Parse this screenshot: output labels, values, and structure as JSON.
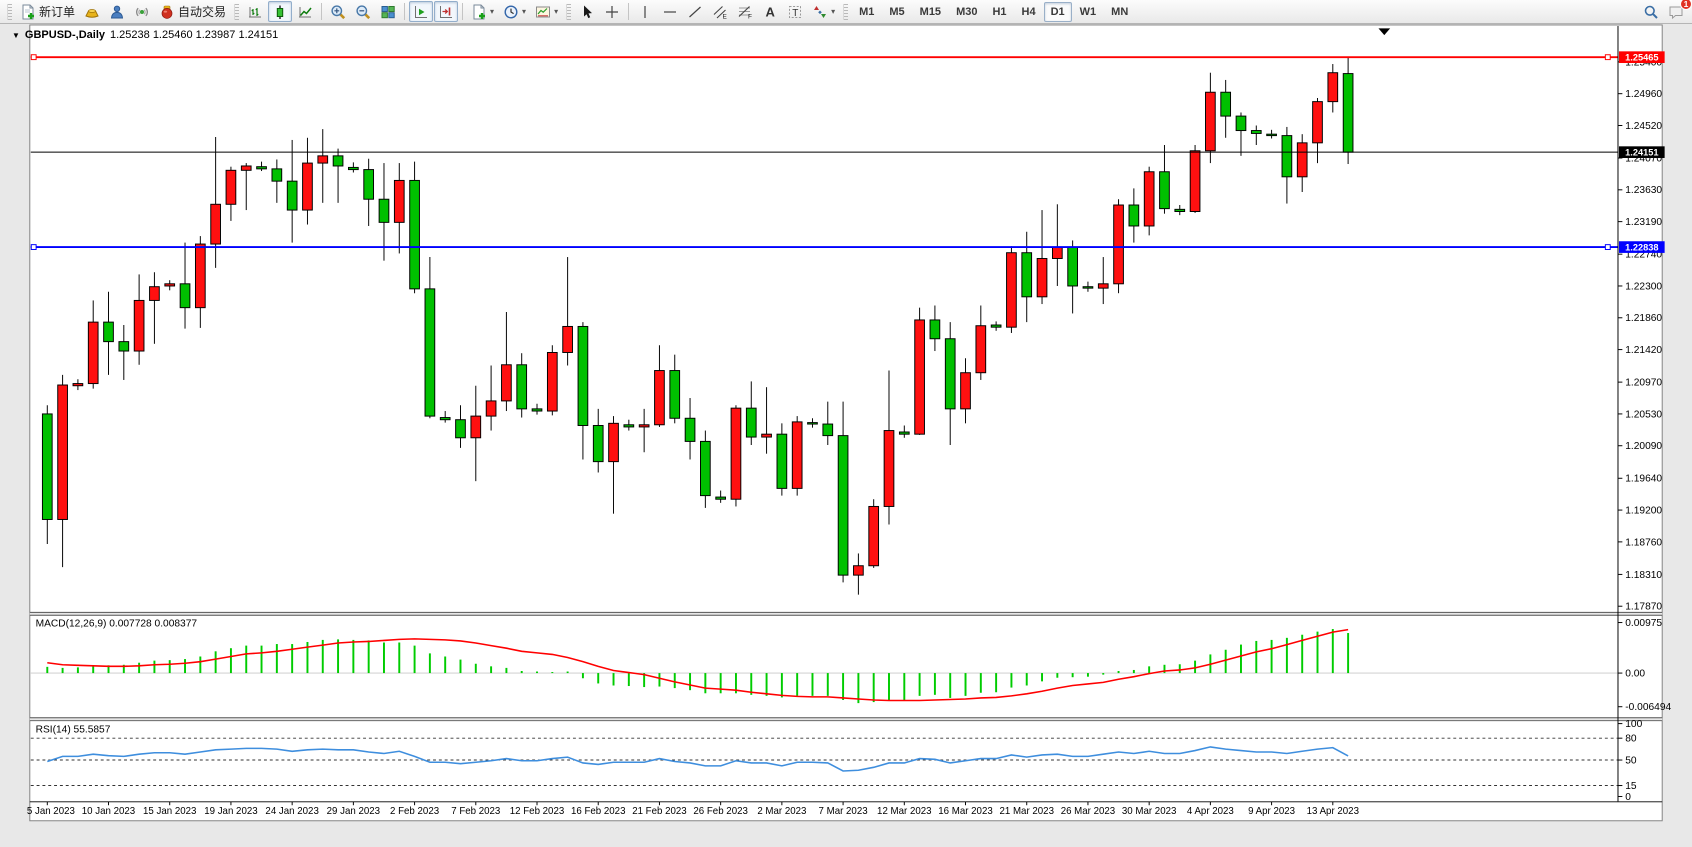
{
  "toolbar": {
    "new_order": "新订单",
    "auto_trading": "自动交易",
    "timeframes": [
      "M1",
      "M5",
      "M15",
      "M30",
      "H1",
      "H4",
      "D1",
      "W1",
      "MN"
    ],
    "active_timeframe": "D1",
    "notification_badge": "1",
    "icons": {
      "new-order-icon": "document-plus",
      "gold-icon": "gold-ingot",
      "profile-icon": "person",
      "signal-icon": "radio-waves",
      "auto-trading-icon": "red-ball",
      "bar-chart-icon": "ohlc-bars",
      "candlestick-icon": "candle",
      "line-chart-icon": "polyline",
      "zoom-in-icon": "magnifier-plus",
      "zoom-out-icon": "magnifier-minus",
      "tile-windows-icon": "grid",
      "auto-scroll-icon": "chart-play",
      "chart-shift-icon": "chart-shift",
      "new-chart-icon": "document-plus",
      "periods-icon": "clock",
      "templates-icon": "mini-chart",
      "cursor-icon": "arrow-pointer",
      "crosshair-icon": "crosshair",
      "vline-icon": "vertical-line",
      "hline-icon": "horizontal-line",
      "trendline-icon": "diagonal-line",
      "channel-icon": "parallel-lines-E",
      "fibonacci-icon": "levels-F",
      "text-icon": "letter-A",
      "label-icon": "boxed-T",
      "arrows-icon": "shapes",
      "search-icon": "magnifier",
      "chat-icon": "speech-bubble"
    }
  },
  "title_bar": {
    "symbol": "GBPUSD-,Daily",
    "ohlc_text": "1.25238 1.25460 1.23987 1.24151"
  },
  "chart_data": {
    "type": "candlestick",
    "symbol": "GBPUSD",
    "timeframe": "Daily",
    "last_bar": {
      "open": 1.25238,
      "high": 1.2546,
      "low": 1.23987,
      "close": 1.24151
    },
    "colors": {
      "up_body": "#FF1010",
      "down_body": "#00C000",
      "wick": "#000000",
      "macd_histogram": "#00CC00",
      "macd_signal": "#FF0000",
      "rsi_line": "#3E8EDE",
      "hline_resistance": "#FF0000",
      "hline_support": "#0000FF",
      "bid_line": "#000000",
      "background": "#FFFFFF"
    },
    "price_axis": {
      "visible_max": 1.25897,
      "visible_min": 1.17792,
      "ticks": [
        1.254,
        1.2496,
        1.2452,
        1.2407,
        1.2363,
        1.2319,
        1.2274,
        1.223,
        1.2186,
        1.2142,
        1.2097,
        1.2053,
        1.2009,
        1.1964,
        1.192,
        1.1876,
        1.1831,
        1.1787
      ]
    },
    "hlines": [
      {
        "name": "resistance-line",
        "value": 1.25465,
        "label": "1.25465",
        "color": "#FF0000",
        "width": 2,
        "handles": true
      },
      {
        "name": "bid-price-line",
        "value": 1.24151,
        "label": "1.24151",
        "color": "#000000",
        "width": 1,
        "handles": false
      },
      {
        "name": "support-line",
        "value": 1.22838,
        "label": "1.22838",
        "color": "#0000FF",
        "width": 2,
        "handles": true
      }
    ],
    "x_ticks": [
      {
        "label": "5 Jan 2023",
        "i": 0
      },
      {
        "label": "10 Jan 2023",
        "i": 4
      },
      {
        "label": "15 Jan 2023",
        "i": 8
      },
      {
        "label": "19 Jan 2023",
        "i": 12
      },
      {
        "label": "24 Jan 2023",
        "i": 16
      },
      {
        "label": "29 Jan 2023",
        "i": 20
      },
      {
        "label": "2 Feb 2023",
        "i": 24
      },
      {
        "label": "7 Feb 2023",
        "i": 28
      },
      {
        "label": "12 Feb 2023",
        "i": 32
      },
      {
        "label": "16 Feb 2023",
        "i": 36
      },
      {
        "label": "21 Feb 2023",
        "i": 40
      },
      {
        "label": "26 Feb 2023",
        "i": 44
      },
      {
        "label": "2 Mar 2023",
        "i": 48
      },
      {
        "label": "7 Mar 2023",
        "i": 52
      },
      {
        "label": "12 Mar 2023",
        "i": 56
      },
      {
        "label": "16 Mar 2023",
        "i": 60
      },
      {
        "label": "21 Mar 2023",
        "i": 64
      },
      {
        "label": "26 Mar 2023",
        "i": 68
      },
      {
        "label": "30 Mar 2023",
        "i": 72
      },
      {
        "label": "4 Apr 2023",
        "i": 76
      },
      {
        "label": "9 Apr 2023",
        "i": 80
      },
      {
        "label": "13 Apr 2023",
        "i": 84
      }
    ],
    "candles": [
      [
        "5 Jan",
        1.2053,
        1.2065,
        1.1873,
        1.1907
      ],
      [
        "6 Jan",
        1.1907,
        1.2107,
        1.1841,
        1.2093
      ],
      [
        "8 Jan",
        1.2092,
        1.2101,
        1.2086,
        1.2095
      ],
      [
        "9 Jan",
        1.2095,
        1.221,
        1.2088,
        1.218
      ],
      [
        "10 Jan",
        1.218,
        1.2222,
        1.2107,
        1.2153
      ],
      [
        "11 Jan",
        1.2153,
        1.2176,
        1.21,
        1.214
      ],
      [
        "12 Jan",
        1.214,
        1.2246,
        1.2121,
        1.221
      ],
      [
        "13 Jan",
        1.221,
        1.2249,
        1.215,
        1.2229
      ],
      [
        "15 Jan",
        1.223,
        1.2238,
        1.2224,
        1.2233
      ],
      [
        "16 Jan",
        1.2233,
        1.229,
        1.2171,
        1.22
      ],
      [
        "17 Jan",
        1.22,
        1.2299,
        1.2172,
        1.2288
      ],
      [
        "18 Jan",
        1.2288,
        1.2436,
        1.2255,
        1.2343
      ],
      [
        "19 Jan",
        1.2343,
        1.2395,
        1.232,
        1.239
      ],
      [
        "20 Jan",
        1.239,
        1.24,
        1.2335,
        1.2396
      ],
      [
        "22 Jan",
        1.2395,
        1.2402,
        1.2389,
        1.2392
      ],
      [
        "23 Jan",
        1.2392,
        1.2405,
        1.2345,
        1.2375
      ],
      [
        "24 Jan",
        1.2375,
        1.2432,
        1.229,
        1.2335
      ],
      [
        "25 Jan",
        1.2335,
        1.2435,
        1.2315,
        1.24
      ],
      [
        "26 Jan",
        1.24,
        1.2447,
        1.2345,
        1.241
      ],
      [
        "27 Jan",
        1.241,
        1.242,
        1.2345,
        1.2396
      ],
      [
        "29 Jan",
        1.2394,
        1.2401,
        1.2387,
        1.2391
      ],
      [
        "30 Jan",
        1.2391,
        1.2406,
        1.2313,
        1.235
      ],
      [
        "31 Jan",
        1.235,
        1.24,
        1.2265,
        1.2318
      ],
      [
        "1 Feb",
        1.2318,
        1.24,
        1.2275,
        1.2376
      ],
      [
        "2 Feb",
        1.2376,
        1.2402,
        1.222,
        1.2226
      ],
      [
        "3 Feb",
        1.2226,
        1.227,
        1.2047,
        1.205
      ],
      [
        "5 Feb",
        1.2048,
        1.2057,
        1.2041,
        1.2045
      ],
      [
        "6 Feb",
        1.2045,
        1.2065,
        1.2006,
        1.202
      ],
      [
        "7 Feb",
        1.202,
        1.2092,
        1.196,
        1.205
      ],
      [
        "8 Feb",
        1.205,
        1.212,
        1.203,
        1.2071
      ],
      [
        "9 Feb",
        1.2071,
        1.2194,
        1.2057,
        1.2121
      ],
      [
        "10 Feb",
        1.2121,
        1.2137,
        1.2048,
        1.206
      ],
      [
        "12 Feb",
        1.206,
        1.2067,
        1.2052,
        1.2057
      ],
      [
        "13 Feb",
        1.2057,
        1.2148,
        1.2051,
        1.2138
      ],
      [
        "14 Feb",
        1.2138,
        1.227,
        1.212,
        1.2174
      ],
      [
        "15 Feb",
        1.2174,
        1.218,
        1.199,
        1.2037
      ],
      [
        "16 Feb",
        1.2037,
        1.206,
        1.1972,
        1.1987
      ],
      [
        "17 Feb",
        1.1987,
        1.205,
        1.1915,
        1.204
      ],
      [
        "19 Feb",
        1.2038,
        1.2045,
        1.203,
        1.2035
      ],
      [
        "20 Feb",
        1.2035,
        1.206,
        1.2,
        1.2038
      ],
      [
        "21 Feb",
        1.2038,
        1.2148,
        1.2035,
        1.2113
      ],
      [
        "22 Feb",
        1.2113,
        1.2135,
        1.204,
        1.2047
      ],
      [
        "23 Feb",
        1.2047,
        1.2075,
        1.199,
        1.2015
      ],
      [
        "24 Feb",
        1.2015,
        1.203,
        1.1923,
        1.194
      ],
      [
        "26 Feb",
        1.1938,
        1.1947,
        1.193,
        1.1935
      ],
      [
        "27 Feb",
        1.1935,
        1.2065,
        1.1925,
        1.2061
      ],
      [
        "28 Feb",
        1.2061,
        1.2098,
        1.201,
        1.2021
      ],
      [
        "1 Mar",
        1.2021,
        1.209,
        1.1998,
        1.2025
      ],
      [
        "2 Mar",
        1.2025,
        1.204,
        1.194,
        1.195
      ],
      [
        "3 Mar",
        1.195,
        1.205,
        1.194,
        1.2042
      ],
      [
        "5 Mar",
        1.2041,
        1.2047,
        1.2034,
        1.2039
      ],
      [
        "6 Mar",
        1.2039,
        1.207,
        1.201,
        1.2023
      ],
      [
        "7 Mar",
        1.2023,
        1.207,
        1.182,
        1.183
      ],
      [
        "8 Mar",
        1.183,
        1.186,
        1.1803,
        1.1843
      ],
      [
        "9 Mar",
        1.1843,
        1.1935,
        1.184,
        1.1925
      ],
      [
        "10 Mar",
        1.1925,
        1.2113,
        1.19,
        1.203
      ],
      [
        "12 Mar",
        1.2028,
        1.2037,
        1.202,
        1.2025
      ],
      [
        "13 Mar",
        1.2025,
        1.22,
        1.2024,
        1.2183
      ],
      [
        "14 Mar",
        1.2183,
        1.2203,
        1.214,
        1.2157
      ],
      [
        "15 Mar",
        1.2157,
        1.218,
        1.201,
        1.206
      ],
      [
        "16 Mar",
        1.206,
        1.213,
        1.204,
        1.211
      ],
      [
        "17 Mar",
        1.211,
        1.2203,
        1.21,
        1.2175
      ],
      [
        "19 Mar",
        1.2176,
        1.2181,
        1.2168,
        1.2173
      ],
      [
        "20 Mar",
        1.2173,
        1.2285,
        1.2165,
        1.2276
      ],
      [
        "21 Mar",
        1.2276,
        1.2305,
        1.218,
        1.2215
      ],
      [
        "22 Mar",
        1.2215,
        1.2335,
        1.2205,
        1.2268
      ],
      [
        "23 Mar",
        1.2268,
        1.2343,
        1.223,
        1.2284
      ],
      [
        "24 Mar",
        1.2284,
        1.2293,
        1.2192,
        1.223
      ],
      [
        "26 Mar",
        1.2229,
        1.2236,
        1.2222,
        1.2227
      ],
      [
        "27 Mar",
        1.2227,
        1.227,
        1.2205,
        1.2233
      ],
      [
        "28 Mar",
        1.2233,
        1.235,
        1.222,
        1.2342
      ],
      [
        "29 Mar",
        1.2342,
        1.2365,
        1.229,
        1.2313
      ],
      [
        "30 Mar",
        1.2313,
        1.2395,
        1.23,
        1.2388
      ],
      [
        "31 Mar",
        1.2388,
        1.2425,
        1.233,
        1.2337
      ],
      [
        "2 Apr",
        1.2336,
        1.2342,
        1.2328,
        1.2333
      ],
      [
        "3 Apr",
        1.2333,
        1.2425,
        1.2331,
        1.2417
      ],
      [
        "4 Apr",
        1.2417,
        1.2525,
        1.24,
        1.2498
      ],
      [
        "5 Apr",
        1.2498,
        1.2515,
        1.2435,
        1.2465
      ],
      [
        "6 Apr",
        1.2465,
        1.247,
        1.241,
        1.2445
      ],
      [
        "7 Apr",
        1.2445,
        1.2452,
        1.2425,
        1.2441
      ],
      [
        "9 Apr",
        1.244,
        1.2446,
        1.2434,
        1.2438
      ],
      [
        "10 Apr",
        1.2438,
        1.245,
        1.2344,
        1.2381
      ],
      [
        "11 Apr",
        1.2381,
        1.244,
        1.236,
        1.2428
      ],
      [
        "12 Apr",
        1.2428,
        1.249,
        1.24,
        1.2485
      ],
      [
        "13 Apr",
        1.2485,
        1.2537,
        1.247,
        1.2525
      ],
      [
        "14 Apr",
        1.25238,
        1.2546,
        1.23987,
        1.24151
      ]
    ],
    "macd": {
      "label": "MACD(12,26,9) 0.007728 0.008377",
      "current_macd": 0.007728,
      "current_signal": 0.008377,
      "axis_max": 0.011064,
      "axis_min": -0.008439,
      "axis_ticks": [
        {
          "label": "0.00975",
          "v": 0.00975
        },
        {
          "label": "0.00",
          "v": 0
        },
        {
          "label": "-0.006494",
          "v": -0.006494
        }
      ],
      "histogram": [
        0.0012,
        0.001,
        0.0011,
        0.0013,
        0.0015,
        0.0016,
        0.002,
        0.0024,
        0.0025,
        0.0027,
        0.0032,
        0.0042,
        0.0048,
        0.0053,
        0.0053,
        0.0056,
        0.0056,
        0.006,
        0.0064,
        0.0065,
        0.0064,
        0.0063,
        0.0059,
        0.0059,
        0.0053,
        0.0038,
        0.0032,
        0.0026,
        0.0018,
        0.0013,
        0.001,
        0.0004,
        0.0003,
        0.0002,
        0.0003,
        -0.001,
        -0.002,
        -0.0024,
        -0.0025,
        -0.0027,
        -0.0026,
        -0.0029,
        -0.0033,
        -0.0039,
        -0.0039,
        -0.0039,
        -0.0042,
        -0.0044,
        -0.0047,
        -0.0044,
        -0.0044,
        -0.0044,
        -0.0052,
        -0.0058,
        -0.0056,
        -0.0053,
        -0.0052,
        -0.0044,
        -0.0042,
        -0.0048,
        -0.0044,
        -0.0038,
        -0.0037,
        -0.0028,
        -0.0024,
        -0.0016,
        -0.0009,
        -0.0008,
        -0.0007,
        -0.0003,
        0.0004,
        0.0006,
        0.0013,
        0.0016,
        0.0017,
        0.0024,
        0.0036,
        0.0045,
        0.0055,
        0.0062,
        0.0064,
        0.0068,
        0.0074,
        0.008,
        0.0085,
        0.007728
      ],
      "signal": [
        0.002,
        0.0016,
        0.0015,
        0.0014,
        0.0013,
        0.0013,
        0.0014,
        0.0016,
        0.0017,
        0.0019,
        0.0022,
        0.0027,
        0.0032,
        0.0037,
        0.0039,
        0.0042,
        0.0046,
        0.005,
        0.0054,
        0.0058,
        0.006,
        0.0061,
        0.0063,
        0.0065,
        0.0066,
        0.0065,
        0.0064,
        0.0062,
        0.0058,
        0.0053,
        0.0048,
        0.0042,
        0.0039,
        0.0036,
        0.003,
        0.0022,
        0.0013,
        0.0005,
        0.0001,
        -0.0003,
        -0.001,
        -0.0017,
        -0.0023,
        -0.0029,
        -0.0031,
        -0.0033,
        -0.0037,
        -0.004,
        -0.0043,
        -0.0045,
        -0.0046,
        -0.0046,
        -0.0048,
        -0.005,
        -0.0052,
        -0.0053,
        -0.0053,
        -0.0053,
        -0.0052,
        -0.0051,
        -0.005,
        -0.0048,
        -0.0047,
        -0.0044,
        -0.004,
        -0.0035,
        -0.0029,
        -0.0024,
        -0.0021,
        -0.0018,
        -0.0012,
        -0.0007,
        -0.0001,
        0.0004,
        0.0006,
        0.001,
        0.0017,
        0.0025,
        0.0033,
        0.0041,
        0.0047,
        0.0055,
        0.0063,
        0.0071,
        0.0079,
        0.008377
      ]
    },
    "rsi": {
      "label": "RSI(14) 55.5857",
      "current": 55.5857,
      "axis_max": 102.67,
      "axis_min": -6.67,
      "axis_ticks": [
        {
          "label": "100",
          "v": 100
        },
        {
          "label": "80",
          "v": 80
        },
        {
          "label": "50",
          "v": 50
        },
        {
          "label": "15",
          "v": 15
        },
        {
          "label": "0",
          "v": 0
        }
      ],
      "dashed_levels": [
        80,
        50,
        15
      ],
      "values": [
        48,
        55,
        55,
        58,
        56,
        55,
        58,
        60,
        60,
        58,
        61,
        64,
        65,
        66,
        66,
        65,
        62,
        64,
        65,
        64,
        64,
        61,
        59,
        62,
        55,
        47,
        47,
        45,
        47,
        49,
        52,
        49,
        49,
        52,
        54,
        46,
        44,
        47,
        47,
        47,
        52,
        48,
        46,
        42,
        42,
        49,
        46,
        46,
        42,
        47,
        47,
        46,
        35,
        36,
        40,
        46,
        46,
        52,
        51,
        46,
        49,
        52,
        52,
        57,
        54,
        57,
        58,
        55,
        55,
        58,
        61,
        59,
        62,
        59,
        59,
        63,
        68,
        65,
        63,
        61,
        61,
        59,
        62,
        65,
        67,
        55.5857
      ]
    }
  }
}
